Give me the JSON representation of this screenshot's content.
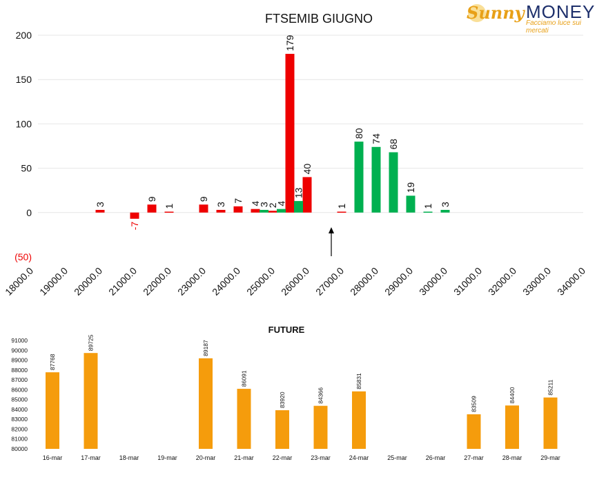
{
  "logo": {
    "brand_part1": "Sunny",
    "brand_part2": "MONEY",
    "tagline": "Facciamo luce sui mercati"
  },
  "colors": {
    "puts": "#ee0000",
    "calls": "#00b050",
    "future": "#f59c0c",
    "negative_label": "#ee0000"
  },
  "chart_data": [
    {
      "type": "bar",
      "title": "FTSEMIB GIUGNO",
      "x_tick_labels": [
        "18000.0",
        "19000.0",
        "20000.0",
        "21000.0",
        "22000.0",
        "23000.0",
        "24000.0",
        "25000.0",
        "26000.0",
        "27000.0",
        "28000.0",
        "29000.0",
        "30000.0",
        "31000.0",
        "32000.0",
        "33000.0",
        "34000.0"
      ],
      "y_tick_labels": [
        "200",
        "150",
        "100",
        "50",
        "0",
        "(50)"
      ],
      "xlim": [
        18000,
        34000
      ],
      "ylim": [
        -50,
        200
      ],
      "marker_x": 26700,
      "series": [
        {
          "color": "red",
          "points": [
            {
              "x": 20000,
              "y": 3
            },
            {
              "x": 21000,
              "y": -7
            },
            {
              "x": 21500,
              "y": 9
            },
            {
              "x": 22000,
              "y": 1
            },
            {
              "x": 23000,
              "y": 9
            },
            {
              "x": 23500,
              "y": 3
            },
            {
              "x": 24000,
              "y": 7
            },
            {
              "x": 24500,
              "y": 4
            },
            {
              "x": 25000,
              "y": 2
            },
            {
              "x": 25500,
              "y": 179
            },
            {
              "x": 26000,
              "y": 40
            },
            {
              "x": 27000,
              "y": 1
            }
          ]
        },
        {
          "color": "green",
          "points": [
            {
              "x": 24750,
              "y": 3
            },
            {
              "x": 25250,
              "y": 4
            },
            {
              "x": 25750,
              "y": 13
            },
            {
              "x": 27500,
              "y": 80
            },
            {
              "x": 28000,
              "y": 74
            },
            {
              "x": 28500,
              "y": 68
            },
            {
              "x": 29000,
              "y": 19
            },
            {
              "x": 29500,
              "y": 1
            },
            {
              "x": 30000,
              "y": 3
            }
          ]
        }
      ],
      "grid": true
    },
    {
      "type": "bar",
      "title": "FUTURE",
      "categories": [
        "16-mar",
        "17-mar",
        "18-mar",
        "19-mar",
        "20-mar",
        "21-mar",
        "22-mar",
        "23-mar",
        "24-mar",
        "25-mar",
        "26-mar",
        "27-mar",
        "28-mar",
        "29-mar"
      ],
      "values": [
        87768,
        89725,
        null,
        null,
        89187,
        86091,
        83920,
        84366,
        85831,
        null,
        null,
        83509,
        84400,
        85211
      ],
      "y_tick_labels": [
        "91000",
        "90000",
        "89000",
        "88000",
        "87000",
        "86000",
        "85000",
        "84000",
        "83000",
        "82000",
        "81000",
        "80000"
      ],
      "ylim": [
        80000,
        91000
      ],
      "grid": false
    }
  ]
}
